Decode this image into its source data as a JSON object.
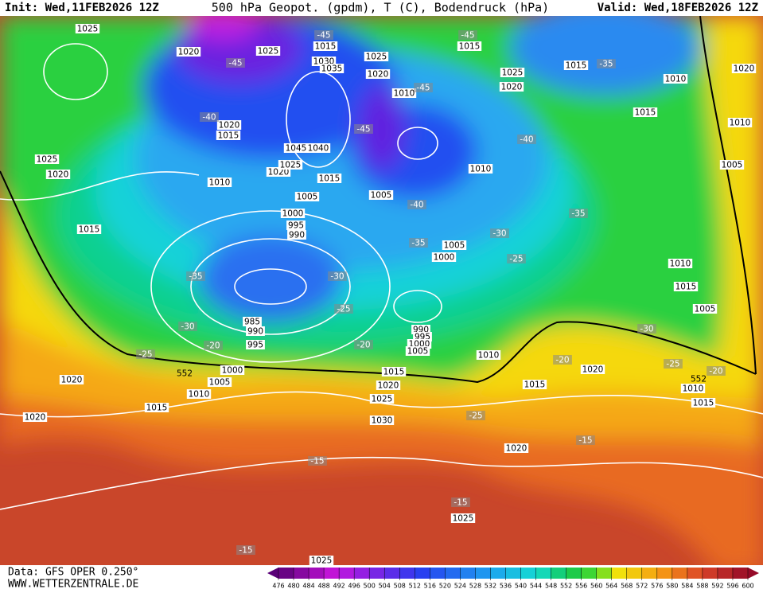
{
  "header": {
    "init": "Init: Wed,11FEB2026 12Z",
    "title": "500 hPa Geopot. (gpdm), T (C), Bodendruck (hPa)",
    "valid": "Valid: Wed,18FEB2026 12Z"
  },
  "footer": {
    "source": "Data: GFS OPER 0.250°",
    "website": "WWW.WETTERZENTRALE.DE"
  },
  "colorbar": {
    "ticks": [
      476,
      480,
      484,
      488,
      492,
      496,
      500,
      504,
      508,
      512,
      516,
      520,
      524,
      528,
      532,
      536,
      540,
      544,
      548,
      552,
      556,
      560,
      564,
      568,
      572,
      576,
      580,
      584,
      588,
      592,
      596,
      600
    ]
  },
  "map": {
    "isobar_labels": [
      1025,
      1020,
      1025,
      1015,
      1030,
      1035,
      1025,
      1020,
      1015,
      1025,
      1020,
      1015,
      1010,
      1020,
      1010,
      1020,
      1015,
      1045,
      1040,
      1025,
      1020,
      1020,
      1025,
      1015,
      1010,
      1005,
      1005,
      1010,
      1015,
      1010,
      1005,
      1000,
      995,
      990,
      1015,
      1005,
      1000,
      1010,
      1015,
      1005,
      985,
      990,
      995,
      990,
      995,
      1000,
      1005,
      1010,
      1000,
      1005,
      1010,
      1015,
      1020,
      1015,
      1020,
      1025,
      1030,
      1020,
      1020,
      1015,
      1010,
      1015,
      1020,
      1025,
      1025
    ],
    "temperature_labels": [
      -40,
      -45,
      -45,
      -45,
      -35,
      -45,
      -45,
      -40,
      -40,
      -35,
      -30,
      -35,
      -25,
      -35,
      -30,
      -25,
      -30,
      -20,
      -20,
      -25,
      -30,
      -20,
      -25,
      -20,
      -25,
      -15,
      -15,
      -15,
      -15
    ],
    "geopotential_labels": [
      552,
      552
    ]
  }
}
